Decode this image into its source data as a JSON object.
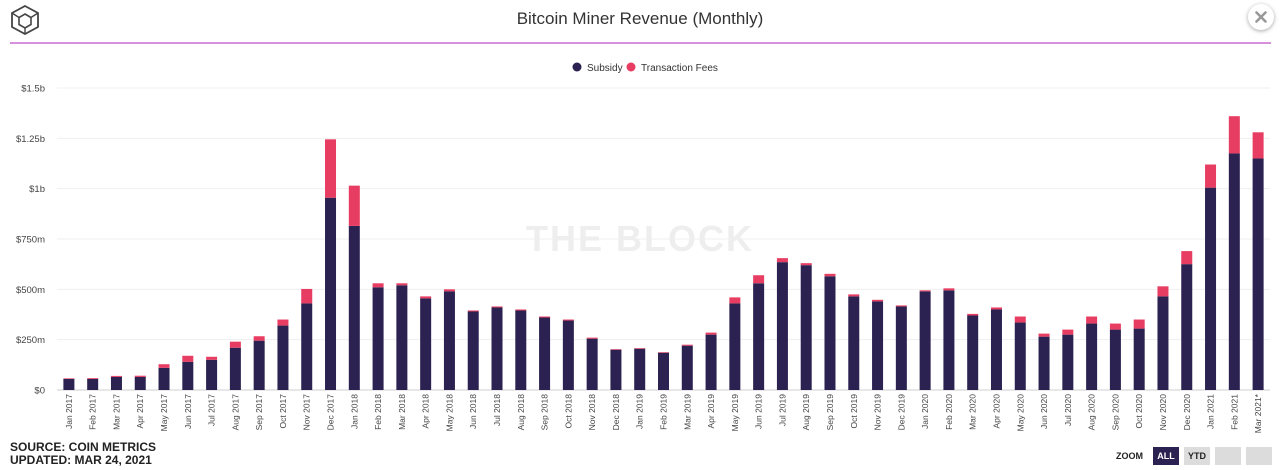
{
  "header": {
    "title": "Bitcoin Miner Revenue (Monthly)",
    "logo_icon": "cube-logo-icon",
    "close_icon": "close-icon",
    "rule_color": "#d690dd"
  },
  "watermark": "THE BLOCK",
  "footer": {
    "source": "SOURCE: COIN METRICS",
    "updated": "UPDATED: MAR 24, 2021"
  },
  "zoom": {
    "label": "ZOOM",
    "buttons": [
      "ALL",
      "YTD"
    ],
    "active": "ALL"
  },
  "chart_data": {
    "type": "bar",
    "stacked": true,
    "title": "Bitcoin Miner Revenue (Monthly)",
    "legend_position": "top-center",
    "grid": true,
    "ylim": [
      0,
      1.5
    ],
    "y_ticks": [
      0,
      0.25,
      0.5,
      0.75,
      1.0,
      1.25,
      1.5
    ],
    "y_tick_labels": [
      "$0",
      "$250m",
      "$500m",
      "$750m",
      "$1b",
      "$1.25b",
      "$1.5b"
    ],
    "categories": [
      "Jan 2017",
      "Feb 2017",
      "Mar 2017",
      "Apr 2017",
      "May 2017",
      "Jun 2017",
      "Jul 2017",
      "Aug 2017",
      "Sep 2017",
      "Oct 2017",
      "Nov 2017",
      "Dec 2017",
      "Jan 2018",
      "Feb 2018",
      "Mar 2018",
      "Apr 2018",
      "May 2018",
      "Jun 2018",
      "Jul 2018",
      "Aug 2018",
      "Sep 2018",
      "Oct 2018",
      "Nov 2018",
      "Dec 2018",
      "Jan 2019",
      "Feb 2019",
      "Mar 2019",
      "Apr 2019",
      "May 2019",
      "Jun 2019",
      "Jul 2019",
      "Aug 2019",
      "Sep 2019",
      "Oct 2019",
      "Nov 2019",
      "Dec 2019",
      "Jan 2020",
      "Feb 2020",
      "Mar 2020",
      "Apr 2020",
      "May 2020",
      "Jun 2020",
      "Jul 2020",
      "Aug 2020",
      "Sep 2020",
      "Oct 2020",
      "Nov 2020",
      "Dec 2020",
      "Jan 2021",
      "Feb 2021",
      "Mar 2021*"
    ],
    "series": [
      {
        "name": "Subsidy",
        "color": "#2b2251",
        "values": [
          0.055,
          0.055,
          0.065,
          0.065,
          0.11,
          0.14,
          0.15,
          0.21,
          0.245,
          0.32,
          0.43,
          0.955,
          0.815,
          0.51,
          0.52,
          0.455,
          0.49,
          0.39,
          0.41,
          0.395,
          0.36,
          0.345,
          0.255,
          0.2,
          0.205,
          0.185,
          0.22,
          0.275,
          0.43,
          0.53,
          0.635,
          0.62,
          0.565,
          0.465,
          0.44,
          0.415,
          0.49,
          0.495,
          0.37,
          0.4,
          0.335,
          0.265,
          0.275,
          0.33,
          0.3,
          0.305,
          0.465,
          0.625,
          1.005,
          1.175,
          1.15
        ]
      },
      {
        "name": "Transaction Fees",
        "color": "#e83d62",
        "values": [
          0.003,
          0.004,
          0.005,
          0.006,
          0.018,
          0.03,
          0.015,
          0.03,
          0.022,
          0.03,
          0.072,
          0.29,
          0.2,
          0.02,
          0.01,
          0.01,
          0.01,
          0.005,
          0.005,
          0.005,
          0.005,
          0.005,
          0.005,
          0.003,
          0.003,
          0.003,
          0.005,
          0.01,
          0.03,
          0.04,
          0.02,
          0.01,
          0.012,
          0.01,
          0.008,
          0.005,
          0.005,
          0.01,
          0.008,
          0.01,
          0.03,
          0.015,
          0.025,
          0.035,
          0.03,
          0.045,
          0.05,
          0.065,
          0.115,
          0.185,
          0.13
        ]
      }
    ]
  }
}
